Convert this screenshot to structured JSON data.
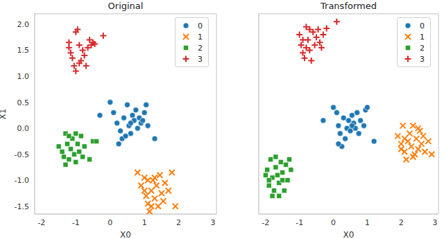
{
  "chart_data": [
    {
      "type": "scatter",
      "title": "Original",
      "x_label": "X0",
      "y_label": "X1",
      "xlim": [
        -2.2,
        3.1
      ],
      "xticks": [
        -2,
        -1,
        0,
        1,
        2,
        3
      ],
      "ylim": [
        -1.65,
        2.2
      ],
      "yticks": [
        {
          "value": -1.5,
          "label": "-1.5"
        },
        {
          "value": -1,
          "label": "-1.0"
        },
        {
          "value": -0.5,
          "label": "-0.5"
        },
        {
          "value": 0,
          "label": "0.0"
        },
        {
          "value": 0.5,
          "label": "0.5"
        },
        {
          "value": 1,
          "label": "1.0"
        },
        {
          "value": 1.5,
          "label": "1.5"
        },
        {
          "value": 2,
          "label": "2.0"
        }
      ],
      "grid": true,
      "legend": "upper right",
      "series": [
        {
          "name": "0",
          "color": "#1f77b4",
          "marker": "circle",
          "values": [
            [
              -0.3,
              0.25
            ],
            [
              0,
              0.5
            ],
            [
              0.1,
              0.3
            ],
            [
              0.2,
              0.1
            ],
            [
              0.3,
              -0.05
            ],
            [
              0.35,
              -0.2
            ],
            [
              0.4,
              0.2
            ],
            [
              0.5,
              0.45
            ],
            [
              0.55,
              0.05
            ],
            [
              0.6,
              -0.1
            ],
            [
              0.65,
              0.25
            ],
            [
              0.7,
              0.15
            ],
            [
              0.75,
              0.35
            ],
            [
              0.8,
              0
            ],
            [
              0.85,
              0.2
            ],
            [
              0.9,
              0.1
            ],
            [
              1,
              0.3
            ],
            [
              1.05,
              0.45
            ],
            [
              1.1,
              0.05
            ],
            [
              0.45,
              -0.15
            ],
            [
              0.25,
              -0.3
            ],
            [
              1.3,
              -0.2
            ],
            [
              0.95,
              0.15
            ],
            [
              0.6,
              0.1
            ]
          ]
        },
        {
          "name": "1",
          "color": "#ff7f0e",
          "marker": "x",
          "values": [
            [
              0.8,
              -0.85
            ],
            [
              0.9,
              -1.1
            ],
            [
              1,
              -0.95
            ],
            [
              1.05,
              -1.3
            ],
            [
              1.1,
              -1.45
            ],
            [
              1.15,
              -1.6
            ],
            [
              1.2,
              -1.2
            ],
            [
              1.25,
              -1
            ],
            [
              1.3,
              -1.35
            ],
            [
              1.35,
              -1.1
            ],
            [
              1.4,
              -1.5
            ],
            [
              1.45,
              -0.9
            ],
            [
              1.5,
              -1.25
            ],
            [
              1.55,
              -1.4
            ],
            [
              1.6,
              -1.05
            ],
            [
              1.7,
              -1.2
            ],
            [
              1.8,
              -0.85
            ],
            [
              1.9,
              -1.5
            ],
            [
              1,
              -1.2
            ],
            [
              1.2,
              -1.5
            ],
            [
              1.3,
              -0.95
            ],
            [
              1.1,
              -1
            ]
          ]
        },
        {
          "name": "2",
          "color": "#2ca02c",
          "marker": "square",
          "values": [
            [
              -1.5,
              -0.35
            ],
            [
              -1.4,
              -0.45
            ],
            [
              -1.35,
              -0.55
            ],
            [
              -1.3,
              -0.1
            ],
            [
              -1.25,
              -0.3
            ],
            [
              -1.2,
              -0.6
            ],
            [
              -1.15,
              -0.4
            ],
            [
              -1.1,
              -0.2
            ],
            [
              -1.05,
              -0.5
            ],
            [
              -1,
              -0.65
            ],
            [
              -0.95,
              -0.3
            ],
            [
              -0.9,
              -0.45
            ],
            [
              -0.85,
              -0.15
            ],
            [
              -0.8,
              -0.55
            ],
            [
              -0.75,
              -0.35
            ],
            [
              -0.6,
              -0.6
            ],
            [
              -0.5,
              -0.25
            ],
            [
              -0.4,
              -0.25
            ],
            [
              -1.2,
              -0.15
            ],
            [
              -1.3,
              -0.7
            ],
            [
              -1,
              -0.1
            ]
          ]
        },
        {
          "name": "3",
          "color": "#d62728",
          "marker": "plus",
          "values": [
            [
              -1.2,
              1.65
            ],
            [
              -1.15,
              1.45
            ],
            [
              -1.1,
              1.35
            ],
            [
              -1.05,
              1.2
            ],
            [
              -1,
              1.1
            ],
            [
              -1,
              1.85
            ],
            [
              -0.95,
              1.9
            ],
            [
              -0.9,
              1.6
            ],
            [
              -0.85,
              1.3
            ],
            [
              -0.8,
              1.5
            ],
            [
              -0.75,
              1.4
            ],
            [
              -0.7,
              1.2
            ],
            [
              -0.65,
              1.55
            ],
            [
              -0.6,
              1.7
            ],
            [
              -0.55,
              1.6
            ],
            [
              -0.5,
              1.65
            ],
            [
              -0.45,
              1.62
            ],
            [
              -0.2,
              1.78
            ],
            [
              -1.2,
              1.55
            ],
            [
              -0.9,
              1.25
            ]
          ]
        }
      ]
    },
    {
      "type": "scatter",
      "title": "Transformed",
      "x_label": "X0",
      "tick_labels": "x",
      "xlim": [
        -2.2,
        3.1
      ],
      "xticks": [
        -2,
        -1,
        0,
        1,
        2,
        3
      ],
      "ylim": [
        -1.65,
        2.2
      ],
      "yticks": [
        {
          "value": -1.5,
          "label": "-1.5"
        },
        {
          "value": -1,
          "label": "-1.0"
        },
        {
          "value": -0.5,
          "label": "-0.5"
        },
        {
          "value": 0,
          "label": "0.0"
        },
        {
          "value": 0.5,
          "label": "0.5"
        },
        {
          "value": 1,
          "label": "1.0"
        },
        {
          "value": 1.5,
          "label": "1.5"
        },
        {
          "value": 2,
          "label": "2.0"
        }
      ],
      "grid": true,
      "legend": "upper right",
      "series": [
        {
          "name": "0",
          "color": "#1f77b4",
          "marker": "circle",
          "values": [
            [
              -0.3,
              0.15
            ],
            [
              0,
              0.4
            ],
            [
              0.1,
              0.3
            ],
            [
              0.15,
              0.05
            ],
            [
              0.2,
              -0.1
            ],
            [
              0.25,
              -0.35
            ],
            [
              0.3,
              0.2
            ],
            [
              0.4,
              0
            ],
            [
              0.45,
              0.15
            ],
            [
              0.5,
              -0.05
            ],
            [
              0.55,
              0.25
            ],
            [
              0.6,
              0.1
            ],
            [
              0.65,
              0
            ],
            [
              0.7,
              0.3
            ],
            [
              0.75,
              -0.1
            ],
            [
              0.8,
              0.15
            ],
            [
              0.9,
              0.05
            ],
            [
              0.95,
              0.35
            ],
            [
              1,
              0.4
            ],
            [
              1.2,
              -0.25
            ],
            [
              0.35,
              -0.2
            ],
            [
              0.55,
              0.05
            ],
            [
              0.15,
              -0.3
            ]
          ]
        },
        {
          "name": "1",
          "color": "#ff7f0e",
          "marker": "x",
          "values": [
            [
              1.9,
              -0.15
            ],
            [
              2,
              -0.3
            ],
            [
              2.05,
              0.05
            ],
            [
              2.1,
              -0.45
            ],
            [
              2.15,
              -0.6
            ],
            [
              2.2,
              -0.25
            ],
            [
              2.25,
              -0.1
            ],
            [
              2.3,
              -0.35
            ],
            [
              2.35,
              0.05
            ],
            [
              2.4,
              -0.5
            ],
            [
              2.45,
              -0.2
            ],
            [
              2.5,
              -0.4
            ],
            [
              2.55,
              -0.05
            ],
            [
              2.6,
              -0.3
            ],
            [
              2.65,
              -0.15
            ],
            [
              2.7,
              -0.45
            ],
            [
              2.8,
              -0.25
            ],
            [
              2.9,
              -0.5
            ],
            [
              2.1,
              -0.2
            ],
            [
              2.35,
              -0.55
            ],
            [
              2.5,
              0
            ],
            [
              2,
              -0.4
            ]
          ]
        },
        {
          "name": "2",
          "color": "#2ca02c",
          "marker": "square",
          "values": [
            [
              -2,
              -0.9
            ],
            [
              -1.95,
              -0.8
            ],
            [
              -1.9,
              -1.1
            ],
            [
              -1.85,
              -0.6
            ],
            [
              -1.8,
              -0.95
            ],
            [
              -1.75,
              -1.2
            ],
            [
              -1.7,
              -0.75
            ],
            [
              -1.65,
              -0.9
            ],
            [
              -1.6,
              -1.05
            ],
            [
              -1.55,
              -0.65
            ],
            [
              -1.5,
              -0.85
            ],
            [
              -1.45,
              -1.2
            ],
            [
              -1.4,
              -0.7
            ],
            [
              -1.35,
              -1
            ],
            [
              -1.3,
              -0.6
            ],
            [
              -1.25,
              -0.8
            ],
            [
              -1.8,
              -1.3
            ],
            [
              -1.9,
              -1
            ],
            [
              -1.6,
              -1.3
            ],
            [
              -1.7,
              -0.55
            ],
            [
              -1.5,
              -1
            ]
          ]
        },
        {
          "name": "3",
          "color": "#d62728",
          "marker": "plus",
          "values": [
            [
              -1,
              1.8
            ],
            [
              -0.95,
              1.6
            ],
            [
              -0.9,
              1.45
            ],
            [
              -0.85,
              1.35
            ],
            [
              -0.8,
              1.95
            ],
            [
              -0.8,
              1.55
            ],
            [
              -0.75,
              1.7
            ],
            [
              -0.7,
              1.5
            ],
            [
              -0.65,
              1.3
            ],
            [
              -0.6,
              1.85
            ],
            [
              -0.55,
              1.6
            ],
            [
              -0.5,
              1.75
            ],
            [
              -0.45,
              1.9
            ],
            [
              -0.4,
              1.65
            ],
            [
              -0.35,
              1.55
            ],
            [
              -0.3,
              1.8
            ],
            [
              -0.2,
              1.92
            ],
            [
              0.1,
              2.05
            ],
            [
              -0.9,
              1.7
            ],
            [
              -0.7,
              1.9
            ]
          ]
        }
      ]
    }
  ]
}
